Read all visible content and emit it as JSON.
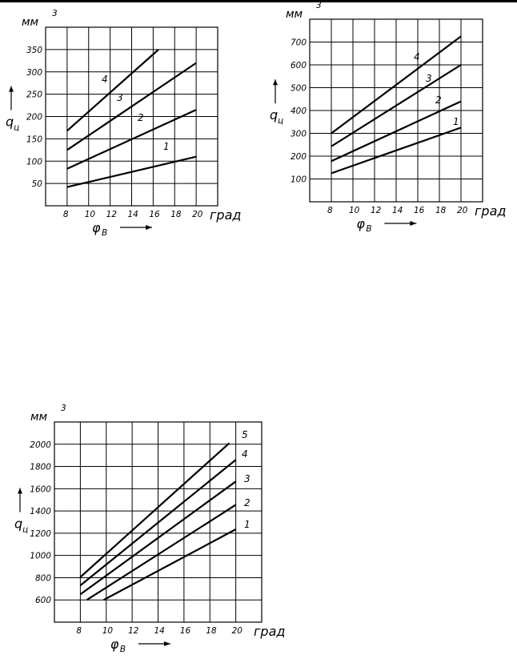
{
  "chart_data": [
    {
      "type": "line",
      "y_unit": "мм",
      "y_unit_exp": "3",
      "y_symbol": "q",
      "y_symbol_sub": "ц",
      "x_symbol": "φ",
      "x_symbol_sub": "B",
      "x_unit": "град",
      "xlim": [
        6,
        22
      ],
      "ylim": [
        0,
        400
      ],
      "x_ticks": [
        "8",
        "10",
        "12",
        "14",
        "16",
        "18",
        "20"
      ],
      "y_ticks": [
        "50",
        "100",
        "150",
        "200",
        "250",
        "300",
        "350"
      ],
      "grid": true,
      "series": [
        {
          "name": "1",
          "x": [
            8,
            20
          ],
          "y": [
            42,
            110
          ]
        },
        {
          "name": "2",
          "x": [
            8,
            20
          ],
          "y": [
            83,
            215
          ]
        },
        {
          "name": "3",
          "x": [
            8,
            20
          ],
          "y": [
            125,
            320
          ]
        },
        {
          "name": "4",
          "x": [
            8,
            16.5
          ],
          "y": [
            168,
            350
          ]
        }
      ]
    },
    {
      "type": "line",
      "y_unit": "мм",
      "y_unit_exp": "3",
      "y_symbol": "q",
      "y_symbol_sub": "ц",
      "x_symbol": "φ",
      "x_symbol_sub": "B",
      "x_unit": "град",
      "xlim": [
        6,
        22
      ],
      "ylim": [
        0,
        800
      ],
      "x_ticks": [
        "8",
        "10",
        "12",
        "14",
        "16",
        "18",
        "20"
      ],
      "y_ticks": [
        "100",
        "200",
        "300",
        "400",
        "500",
        "600",
        "700"
      ],
      "grid": true,
      "series": [
        {
          "name": "1",
          "x": [
            8,
            20
          ],
          "y": [
            125,
            325
          ]
        },
        {
          "name": "2",
          "x": [
            8,
            20
          ],
          "y": [
            178,
            440
          ]
        },
        {
          "name": "3",
          "x": [
            8,
            20
          ],
          "y": [
            243,
            600
          ]
        },
        {
          "name": "4",
          "x": [
            8,
            20
          ],
          "y": [
            300,
            725
          ]
        }
      ]
    },
    {
      "type": "line",
      "y_unit": "мм",
      "y_unit_exp": "3",
      "y_symbol": "q",
      "y_symbol_sub": "ц",
      "x_symbol": "φ",
      "x_symbol_sub": "B",
      "x_unit": "град",
      "xlim": [
        6,
        22
      ],
      "ylim": [
        400,
        2200
      ],
      "x_ticks": [
        "8",
        "10",
        "12",
        "14",
        "16",
        "18",
        "20"
      ],
      "y_ticks": [
        "600",
        "800",
        "1000",
        "1200",
        "1400",
        "1600",
        "1800",
        "2000"
      ],
      "grid": true,
      "series": [
        {
          "name": "1",
          "x": [
            9.8,
            20
          ],
          "y": [
            600,
            1235
          ]
        },
        {
          "name": "2",
          "x": [
            8.5,
            20
          ],
          "y": [
            600,
            1455
          ]
        },
        {
          "name": "3",
          "x": [
            8,
            20
          ],
          "y": [
            650,
            1665
          ]
        },
        {
          "name": "4",
          "x": [
            8,
            20
          ],
          "y": [
            730,
            1860
          ]
        },
        {
          "name": "5",
          "x": [
            8,
            19.5
          ],
          "y": [
            805,
            2010
          ]
        }
      ]
    }
  ]
}
